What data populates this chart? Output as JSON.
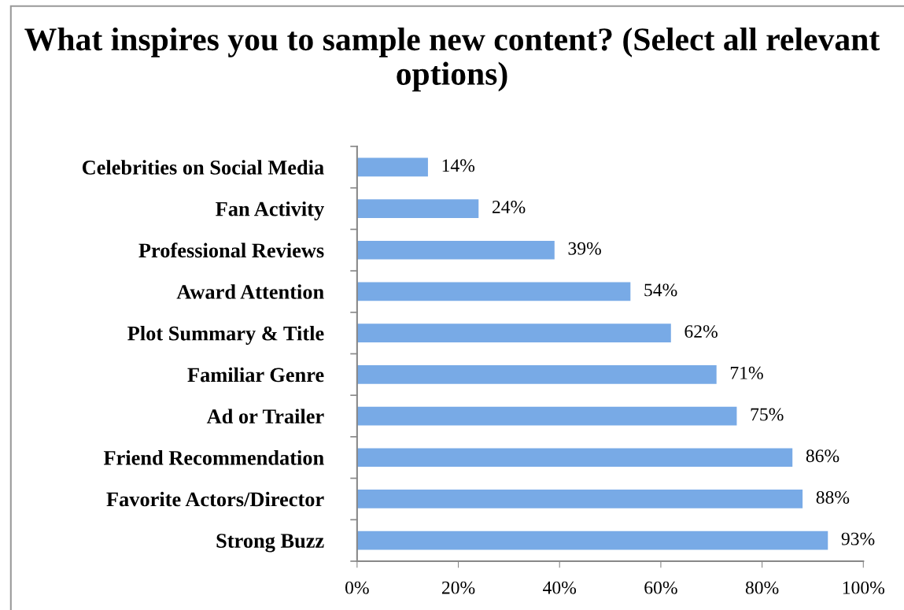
{
  "chart_data": {
    "type": "bar",
    "orientation": "horizontal",
    "title": "What inspires you to sample new content? (Select all relevant options)",
    "categories": [
      "Celebrities on Social Media",
      "Fan Activity",
      "Professional Reviews",
      "Award Attention",
      "Plot Summary & Title",
      "Familiar Genre",
      "Ad or Trailer",
      "Friend Recommendation",
      "Favorite Actors/Director",
      "Strong Buzz"
    ],
    "values": [
      14,
      24,
      39,
      54,
      62,
      71,
      75,
      86,
      88,
      93
    ],
    "value_labels": [
      "14%",
      "24%",
      "39%",
      "54%",
      "62%",
      "71%",
      "75%",
      "86%",
      "88%",
      "93%"
    ],
    "color": "#78aae6",
    "xlim": [
      0,
      100
    ],
    "xticks": [
      {
        "value": 0,
        "label": "0%"
      },
      {
        "value": 20,
        "label": "20%"
      },
      {
        "value": 40,
        "label": "40%"
      },
      {
        "value": 60,
        "label": "60%"
      },
      {
        "value": 80,
        "label": "80%"
      },
      {
        "value": 100,
        "label": "100%"
      }
    ],
    "grid": false,
    "legend": false
  }
}
